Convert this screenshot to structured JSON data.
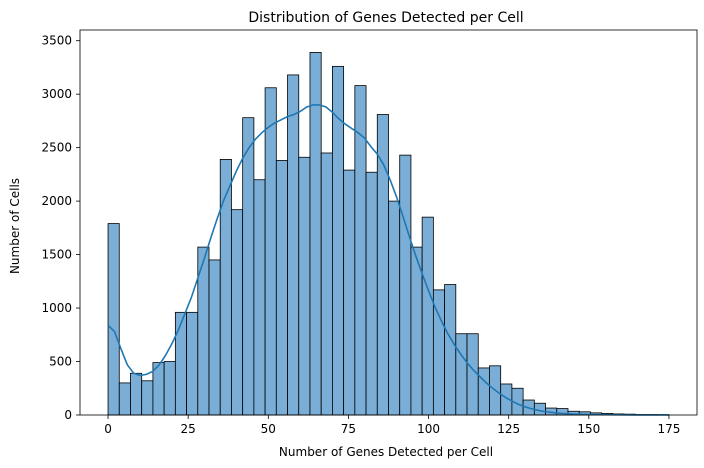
{
  "chart_data": {
    "type": "bar",
    "title": "Distribution of Genes Detected per Cell",
    "xlabel": "Number of Genes Detected per Cell",
    "ylabel": "Number of Cells",
    "xlim": [
      -8.75,
      183.75
    ],
    "ylim": [
      0,
      3600
    ],
    "xticks": [
      0,
      25,
      50,
      75,
      100,
      125,
      150,
      175
    ],
    "yticks": [
      0,
      500,
      1000,
      1500,
      2000,
      2500,
      3000,
      3500
    ],
    "bin_width": 3.5,
    "bin_start": 0,
    "values": [
      1790,
      300,
      390,
      320,
      490,
      500,
      960,
      960,
      1570,
      1450,
      2390,
      1920,
      2780,
      2200,
      3060,
      2380,
      3180,
      2410,
      3390,
      2450,
      3260,
      2290,
      3080,
      2270,
      2810,
      2000,
      2430,
      1570,
      1850,
      1170,
      1220,
      760,
      760,
      440,
      460,
      290,
      250,
      140,
      110,
      65,
      60,
      35,
      30,
      20,
      15,
      10,
      8,
      5,
      5,
      3
    ],
    "kde": {
      "x": [
        0,
        2,
        4,
        6,
        8,
        10,
        12,
        14,
        16,
        18,
        20,
        22,
        24,
        26,
        28,
        30,
        32,
        34,
        36,
        38,
        40,
        42,
        44,
        46,
        48,
        50,
        52,
        54,
        56,
        58,
        60,
        62,
        64,
        66,
        68,
        70,
        72,
        74,
        76,
        78,
        80,
        82,
        84,
        86,
        88,
        90,
        92,
        94,
        96,
        98,
        100,
        102,
        104,
        106,
        108,
        110,
        112,
        114,
        116,
        118,
        120,
        122,
        124,
        126,
        128,
        130,
        132,
        134,
        136,
        138,
        140,
        145,
        150,
        155,
        160,
        165,
        170,
        175
      ],
      "y": [
        840,
        780,
        620,
        470,
        390,
        370,
        380,
        410,
        470,
        560,
        670,
        800,
        950,
        1100,
        1280,
        1460,
        1650,
        1830,
        2000,
        2140,
        2280,
        2400,
        2500,
        2580,
        2640,
        2690,
        2730,
        2760,
        2790,
        2810,
        2840,
        2880,
        2900,
        2900,
        2880,
        2830,
        2770,
        2720,
        2680,
        2640,
        2590,
        2510,
        2440,
        2340,
        2200,
        2040,
        1860,
        1670,
        1490,
        1320,
        1160,
        1010,
        880,
        760,
        660,
        570,
        490,
        420,
        360,
        300,
        250,
        205,
        165,
        130,
        100,
        78,
        60,
        45,
        33,
        25,
        18,
        9,
        5,
        3,
        2,
        1,
        1,
        1
      ]
    },
    "bar_color": "#7aaed6",
    "line_color": "#1f77b4",
    "grid": false,
    "legend": "none"
  }
}
